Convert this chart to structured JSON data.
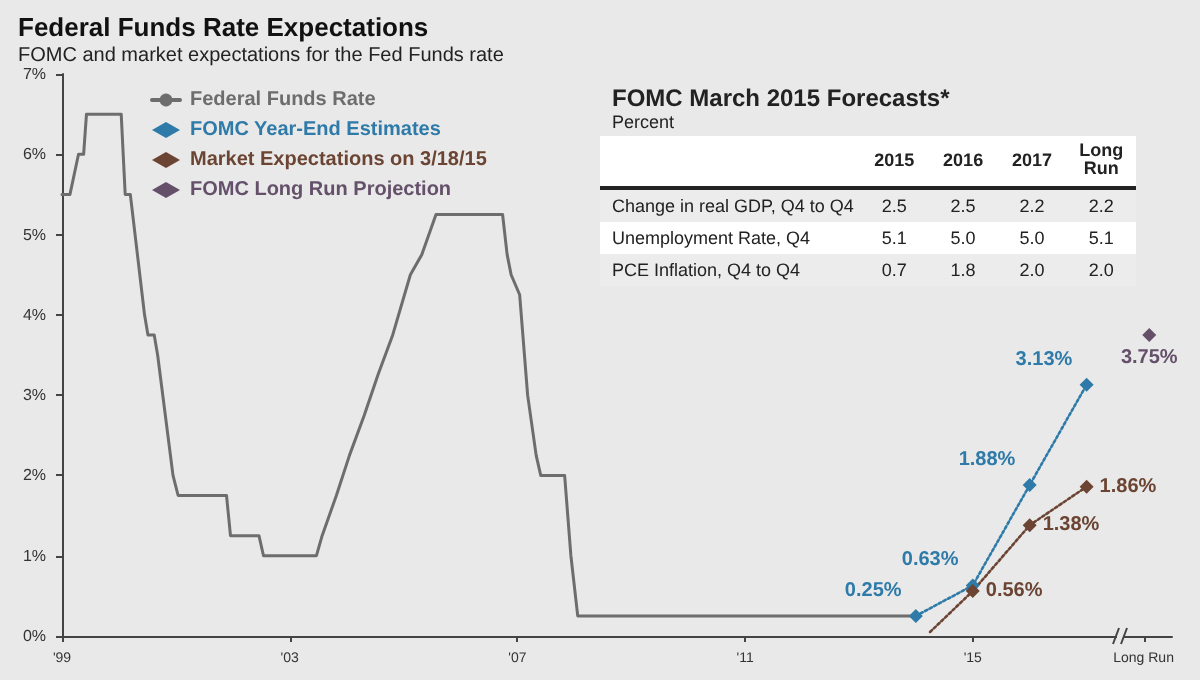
{
  "chart_data": [
    {
      "type": "line",
      "title": "Federal Funds Rate Expectations",
      "subtitle": "FOMC and market expectations for the Fed Funds rate",
      "xlim": [
        1999,
        2018.5
      ],
      "xticks": [
        {
          "value": 1999,
          "label": "'99"
        },
        {
          "value": 2003,
          "label": "'03"
        },
        {
          "value": 2007,
          "label": "'07"
        },
        {
          "value": 2011,
          "label": "'11"
        },
        {
          "value": 2015,
          "label": "'15"
        },
        {
          "value": 2018,
          "label": "Long Run"
        }
      ],
      "ylim": [
        0,
        7
      ],
      "yticks": [
        {
          "value": 0,
          "label": "0%"
        },
        {
          "value": 1,
          "label": "1%"
        },
        {
          "value": 2,
          "label": "2%"
        },
        {
          "value": 3,
          "label": "3%"
        },
        {
          "value": 4,
          "label": "4%"
        },
        {
          "value": 5,
          "label": "5%"
        },
        {
          "value": 6,
          "label": "6%"
        },
        {
          "value": 7,
          "label": "7%"
        }
      ],
      "grid": false,
      "legend": "top left",
      "series": [
        {
          "name": "Federal Funds Rate",
          "color": "#6d6d6d",
          "marker": "none",
          "line_style": "solid",
          "x": [
            1999,
            1999.14,
            1999.29,
            1999.38,
            1999.43,
            2000.04,
            2000.11,
            2000.2,
            2000.45,
            2000.51,
            2000.62,
            2000.68,
            2000.95,
            2001.04,
            2001.89,
            2001.96,
            2002.46,
            2002.54,
            2003.47,
            2003.57,
            2003.82,
            2004.05,
            2004.31,
            2004.55,
            2004.81,
            2005.12,
            2005.32,
            2005.57,
            2006.74,
            2006.82,
            2006.89,
            2007.04,
            2007.18,
            2007.33,
            2007.41,
            2007.83,
            2007.94,
            2008.06,
            2014.0
          ],
          "values": [
            5.5,
            5.5,
            6.0,
            6.0,
            6.5,
            6.5,
            5.5,
            5.5,
            4.0,
            3.75,
            3.75,
            3.5,
            2.0,
            1.75,
            1.75,
            1.25,
            1.25,
            1.0,
            1.0,
            1.25,
            1.75,
            2.25,
            2.75,
            3.25,
            3.75,
            4.5,
            4.75,
            5.25,
            5.25,
            4.75,
            4.5,
            4.25,
            3.0,
            2.25,
            2.0,
            2.0,
            1.0,
            0.25,
            0.25
          ]
        },
        {
          "name": "FOMC Year-End Estimates",
          "color": "#2e7aa8",
          "marker": "diamond",
          "line_style": "dotted",
          "x": [
            2014.0,
            2015.0,
            2016.0,
            2017.0
          ],
          "values": [
            0.25,
            0.63,
            1.88,
            3.13
          ],
          "value_labels": [
            "0.25%",
            "0.63%",
            "1.88%",
            "3.13%"
          ]
        },
        {
          "name": "Market Expectations on 3/18/15",
          "color": "#6b4433",
          "marker": "diamond",
          "line_style": "dotted",
          "x": [
            2014.25,
            2015.0,
            2016.0,
            2017.0
          ],
          "values": [
            0.05,
            0.56,
            1.38,
            1.86
          ],
          "value_labels": [
            null,
            "0.56%",
            "1.38%",
            "1.86%"
          ]
        },
        {
          "name": "FOMC Long Run Projection",
          "color": "#65506a",
          "marker": "diamond",
          "line_style": "none",
          "x": [
            2018.1
          ],
          "values": [
            3.75
          ],
          "value_labels": [
            "3.75%"
          ]
        }
      ]
    },
    {
      "type": "other",
      "title": "FOMC March 2015 Forecasts*",
      "subtitle": "Percent",
      "categories": [
        "2015",
        "2016",
        "2017",
        "Long Run"
      ],
      "y_categories": [
        "Change in real GDP, Q4 to Q4",
        "Unemployment Rate, Q4",
        "PCE Inflation, Q4 to Q4"
      ],
      "cell_labels": [
        [
          "2.5",
          "2.5",
          "2.2",
          "2.2"
        ],
        [
          "5.1",
          "5.0",
          "5.0",
          "5.1"
        ],
        [
          "0.7",
          "1.8",
          "2.0",
          "2.0"
        ]
      ]
    }
  ]
}
